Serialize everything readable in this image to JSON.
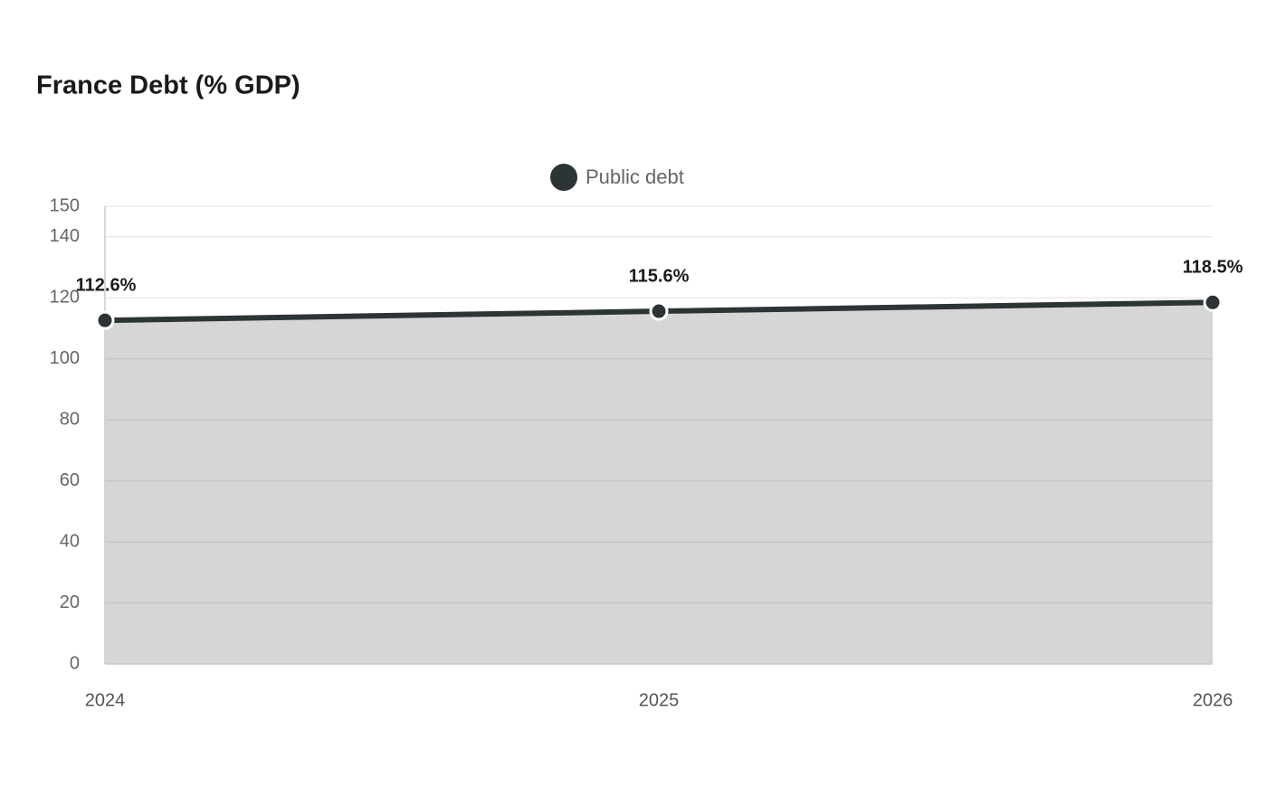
{
  "chart_data": {
    "type": "area",
    "title": "France Debt (% GDP)",
    "categories": [
      "2024",
      "2025",
      "2026"
    ],
    "series": [
      {
        "name": "Public debt",
        "color": "#2d3436",
        "area_color": "#d6d6d6",
        "values": [
          112.6,
          115.6,
          118.5
        ],
        "value_labels": [
          "112.6%",
          "115.6%",
          "118.5%"
        ]
      }
    ],
    "ylim": [
      0,
      150
    ],
    "yticks": [
      0,
      20,
      40,
      60,
      80,
      100,
      120,
      140,
      150
    ],
    "grid": true,
    "legend": "top"
  }
}
